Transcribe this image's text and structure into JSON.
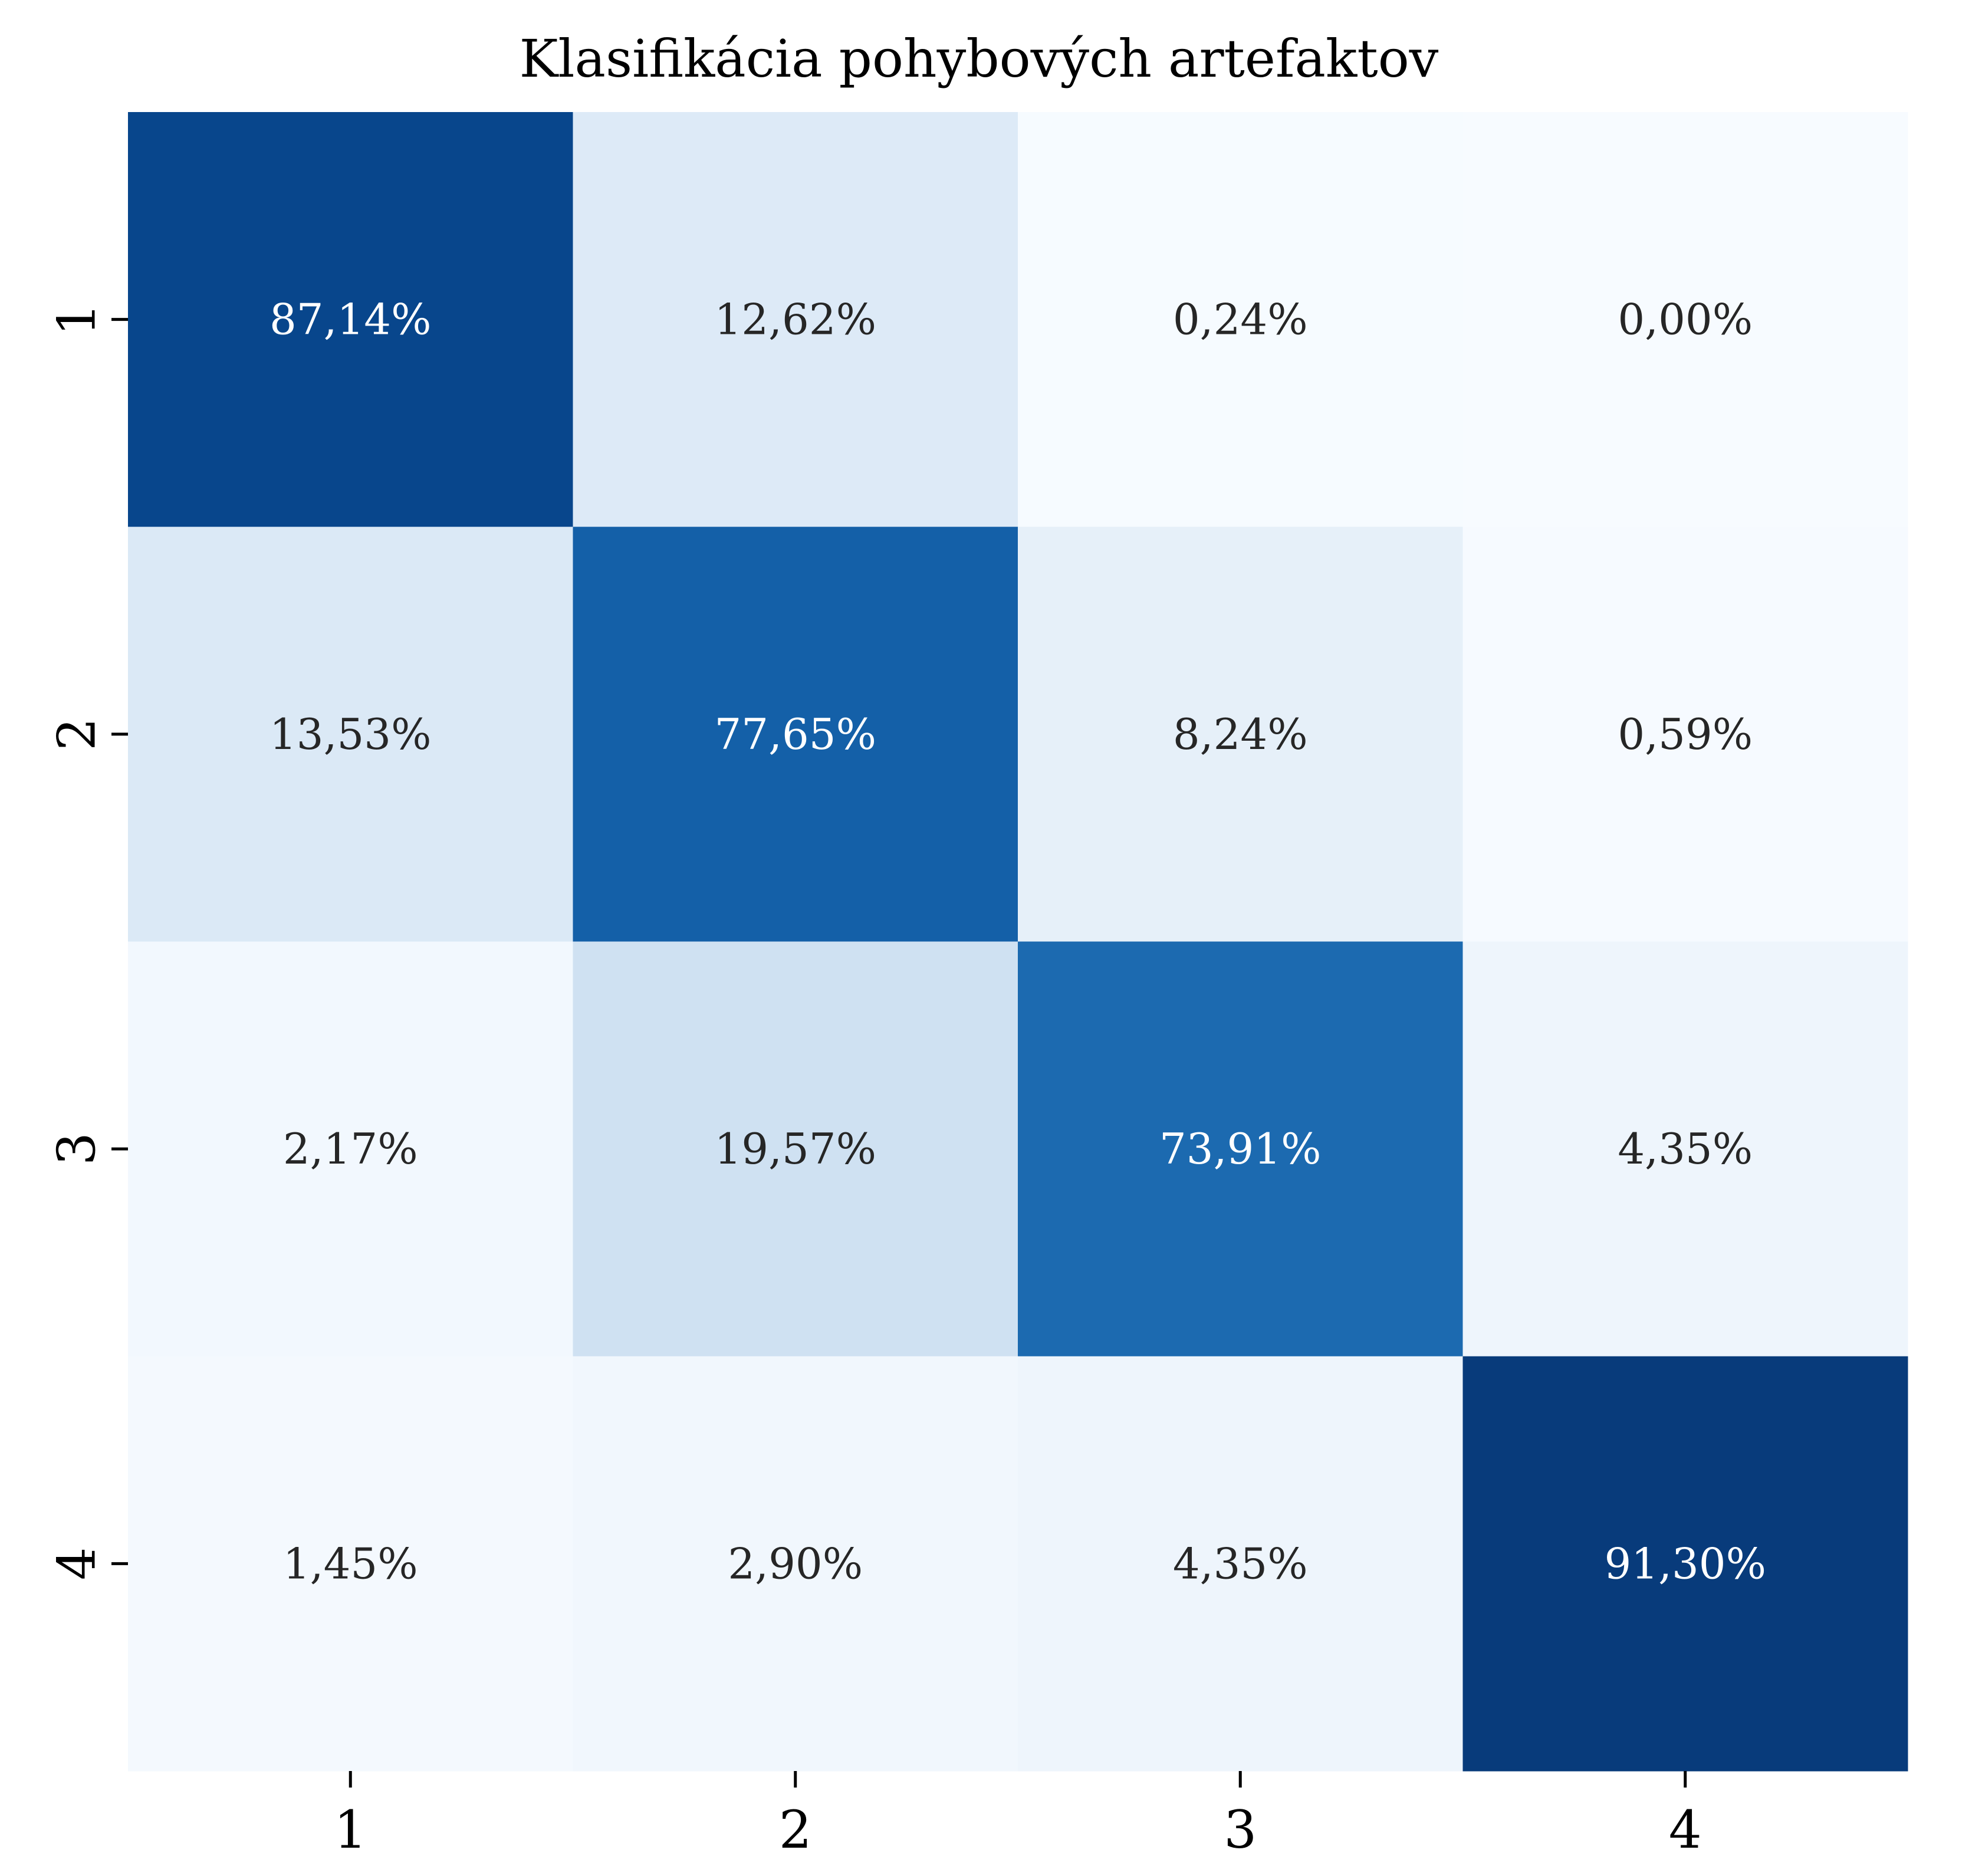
{
  "chart_data": {
    "type": "heatmap",
    "title": "Klasifikácia pohybových artefaktov",
    "xlabel": "",
    "ylabel": "",
    "x_categories": [
      "1",
      "2",
      "3",
      "4"
    ],
    "y_categories": [
      "1",
      "2",
      "3",
      "4"
    ],
    "values": [
      [
        87.14,
        12.62,
        0.24,
        0.0
      ],
      [
        13.53,
        77.65,
        8.24,
        0.59
      ],
      [
        2.17,
        19.57,
        73.91,
        4.35
      ],
      [
        1.45,
        2.9,
        4.35,
        91.3
      ]
    ],
    "cell_labels": [
      [
        "87,14%",
        "12,62%",
        "0,24%",
        "0,00%"
      ],
      [
        "13,53%",
        "77,65%",
        "8,24%",
        "0,59%"
      ],
      [
        "2,17%",
        "19,57%",
        "73,91%",
        "4,35%"
      ],
      [
        "1,45%",
        "2,90%",
        "4,35%",
        "91,30%"
      ]
    ],
    "colormap": "Blues",
    "colorbar": false,
    "grid": false,
    "colors": {
      "low": "#f7fbff",
      "high": "#08306b",
      "text_dark": "#262626",
      "text_light": "#ffffff"
    }
  }
}
